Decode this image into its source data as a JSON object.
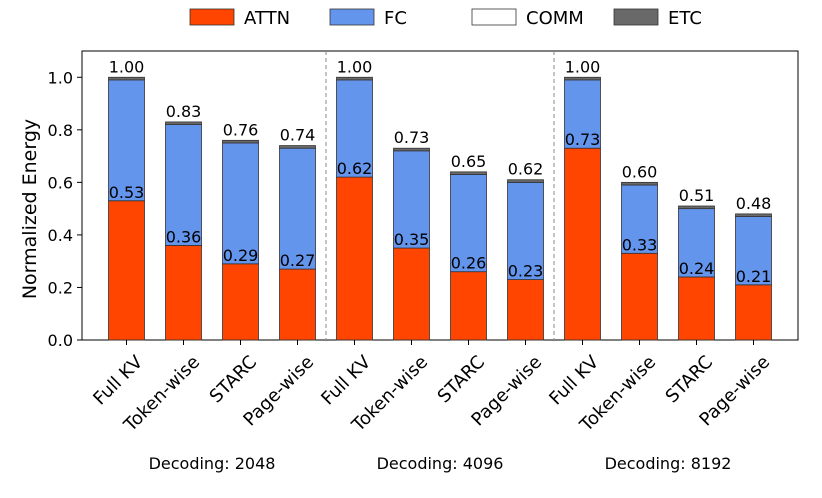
{
  "chart_data": {
    "type": "bar",
    "stacked": true,
    "ylabel": "Normalized Energy",
    "ylim": [
      0,
      1.1
    ],
    "yticks": [
      "0.0",
      "0.2",
      "0.4",
      "0.6",
      "0.8",
      "1.0"
    ],
    "grid": false,
    "legend_position": "top-center",
    "legend": [
      {
        "name": "ATTN",
        "color": "#ff4500"
      },
      {
        "name": "FC",
        "color": "#6495ed"
      },
      {
        "name": "COMM",
        "color": "#ffffff"
      },
      {
        "name": "ETC",
        "color": "#696969"
      }
    ],
    "groups": [
      {
        "label": "Decoding: 2048",
        "bars": [
          {
            "category": "Full KV",
            "attn": 0.53,
            "fc": 0.46,
            "comm": 0.0,
            "etc": 0.01,
            "total_label": "1.00",
            "attn_label": "0.53"
          },
          {
            "category": "Token-wise",
            "attn": 0.36,
            "fc": 0.46,
            "comm": 0.0,
            "etc": 0.01,
            "total_label": "0.83",
            "attn_label": "0.36"
          },
          {
            "category": "STARC",
            "attn": 0.29,
            "fc": 0.46,
            "comm": 0.0,
            "etc": 0.01,
            "total_label": "0.76",
            "attn_label": "0.29"
          },
          {
            "category": "Page-wise",
            "attn": 0.27,
            "fc": 0.46,
            "comm": 0.0,
            "etc": 0.01,
            "total_label": "0.74",
            "attn_label": "0.27"
          }
        ]
      },
      {
        "label": "Decoding: 4096",
        "bars": [
          {
            "category": "Full KV",
            "attn": 0.62,
            "fc": 0.37,
            "comm": 0.0,
            "etc": 0.01,
            "total_label": "1.00",
            "attn_label": "0.62"
          },
          {
            "category": "Token-wise",
            "attn": 0.35,
            "fc": 0.37,
            "comm": 0.0,
            "etc": 0.01,
            "total_label": "0.73",
            "attn_label": "0.35"
          },
          {
            "category": "STARC",
            "attn": 0.26,
            "fc": 0.37,
            "comm": 0.0,
            "etc": 0.01,
            "total_label": "0.65",
            "attn_label": "0.26"
          },
          {
            "category": "Page-wise",
            "attn": 0.23,
            "fc": 0.37,
            "comm": 0.0,
            "etc": 0.01,
            "total_label": "0.62",
            "attn_label": "0.23"
          }
        ]
      },
      {
        "label": "Decoding: 8192",
        "bars": [
          {
            "category": "Full KV",
            "attn": 0.73,
            "fc": 0.26,
            "comm": 0.0,
            "etc": 0.01,
            "total_label": "1.00",
            "attn_label": "0.73"
          },
          {
            "category": "Token-wise",
            "attn": 0.33,
            "fc": 0.26,
            "comm": 0.0,
            "etc": 0.01,
            "total_label": "0.60",
            "attn_label": "0.33"
          },
          {
            "category": "STARC",
            "attn": 0.24,
            "fc": 0.26,
            "comm": 0.0,
            "etc": 0.01,
            "total_label": "0.51",
            "attn_label": "0.24"
          },
          {
            "category": "Page-wise",
            "attn": 0.21,
            "fc": 0.26,
            "comm": 0.0,
            "etc": 0.01,
            "total_label": "0.48",
            "attn_label": "0.21"
          }
        ]
      }
    ]
  }
}
